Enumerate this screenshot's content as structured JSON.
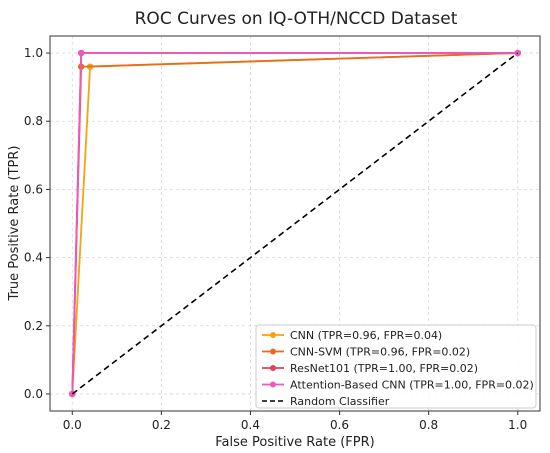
{
  "chart_data": {
    "type": "line",
    "title": "ROC Curves on IQ-OTH/NCCD Dataset",
    "xlabel": "False Positive Rate (FPR)",
    "ylabel": "True Positive Rate (TPR)",
    "xlim": [
      -0.05,
      1.05
    ],
    "ylim": [
      -0.05,
      1.05
    ],
    "xticks": [
      0.0,
      0.2,
      0.4,
      0.6,
      0.8,
      1.0
    ],
    "xtick_labels": [
      "0.0",
      "0.2",
      "0.4",
      "0.6",
      "0.8",
      "1.0"
    ],
    "yticks": [
      0.0,
      0.2,
      0.4,
      0.6,
      0.8,
      1.0
    ],
    "ytick_labels": [
      "0.0",
      "0.2",
      "0.4",
      "0.6",
      "0.8",
      "1.0"
    ],
    "grid": true,
    "legend_position": "bottom-right",
    "series": [
      {
        "name": "CNN (TPR=0.96, FPR=0.04)",
        "color": "#f5a311",
        "marker": true,
        "x": [
          0,
          0.04,
          1
        ],
        "y": [
          0,
          0.96,
          1
        ]
      },
      {
        "name": "CNN-SVM (TPR=0.96, FPR=0.02)",
        "color": "#ea6a1e",
        "marker": true,
        "x": [
          0,
          0.02,
          1
        ],
        "y": [
          0,
          0.96,
          1
        ]
      },
      {
        "name": "ResNet101 (TPR=1.00, FPR=0.02)",
        "color": "#e0405a",
        "marker": true,
        "x": [
          0,
          0.02,
          1
        ],
        "y": [
          0,
          1.0,
          1
        ]
      },
      {
        "name": "Attention-Based CNN (TPR=1.00, FPR=0.02)",
        "color": "#ec57c0",
        "marker": true,
        "x": [
          0,
          0.02,
          1
        ],
        "y": [
          0,
          1.0,
          1
        ]
      },
      {
        "name": "Random Classifier",
        "color": "#000000",
        "marker": false,
        "dashed": true,
        "x": [
          0,
          1
        ],
        "y": [
          0,
          1
        ]
      }
    ]
  }
}
